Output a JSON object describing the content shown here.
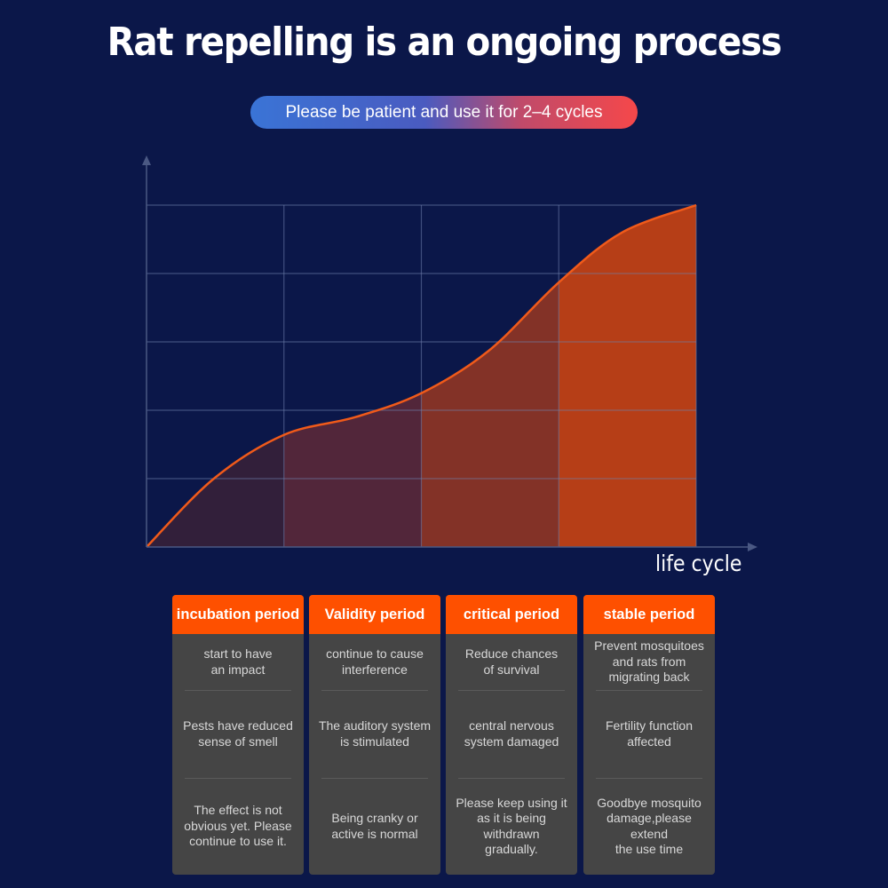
{
  "title": "Rat repelling is an ongoing process",
  "subtitle": "Please be patient and use it for 2–4 cycles",
  "chart_data": {
    "type": "area",
    "xlabel": "life cycle",
    "ylabel": "",
    "xlim": [
      0,
      4
    ],
    "ylim": [
      0,
      5
    ],
    "grid": true,
    "x": [
      0,
      0.49,
      1,
      1.52,
      2,
      2.49,
      3,
      3.46,
      4
    ],
    "values": [
      0,
      1.0,
      1.64,
      1.9,
      2.25,
      2.87,
      3.87,
      4.6,
      5
    ],
    "segment_colors": [
      "#321f3a",
      "#52263a",
      "#833227",
      "#b63e17"
    ],
    "line_color": "#f05a1a"
  },
  "periods": [
    {
      "name": "incubation period",
      "items": [
        "start to have\nan impact",
        "Pests have reduced\nsense of smell",
        "The effect is not\nobvious yet. Please\ncontinue to use it."
      ]
    },
    {
      "name": "Validity period",
      "items": [
        "continue to cause\ninterference",
        "The auditory system\nis stimulated",
        "Being cranky or\nactive is normal"
      ]
    },
    {
      "name": "critical period",
      "items": [
        "Reduce chances\nof survival",
        "central nervous\nsystem damaged",
        "Please keep using it\nas it is being\nwithdrawn\ngradually."
      ]
    },
    {
      "name": "stable period",
      "items": [
        "Prevent mosquitoes\nand rats from\nmigrating back",
        "Fertility function\naffected",
        "Goodbye mosquito\ndamage,please\nextend\nthe use time"
      ]
    }
  ],
  "colors": {
    "background": "#0b1749",
    "header": "#fe5000",
    "card": "#454545"
  }
}
